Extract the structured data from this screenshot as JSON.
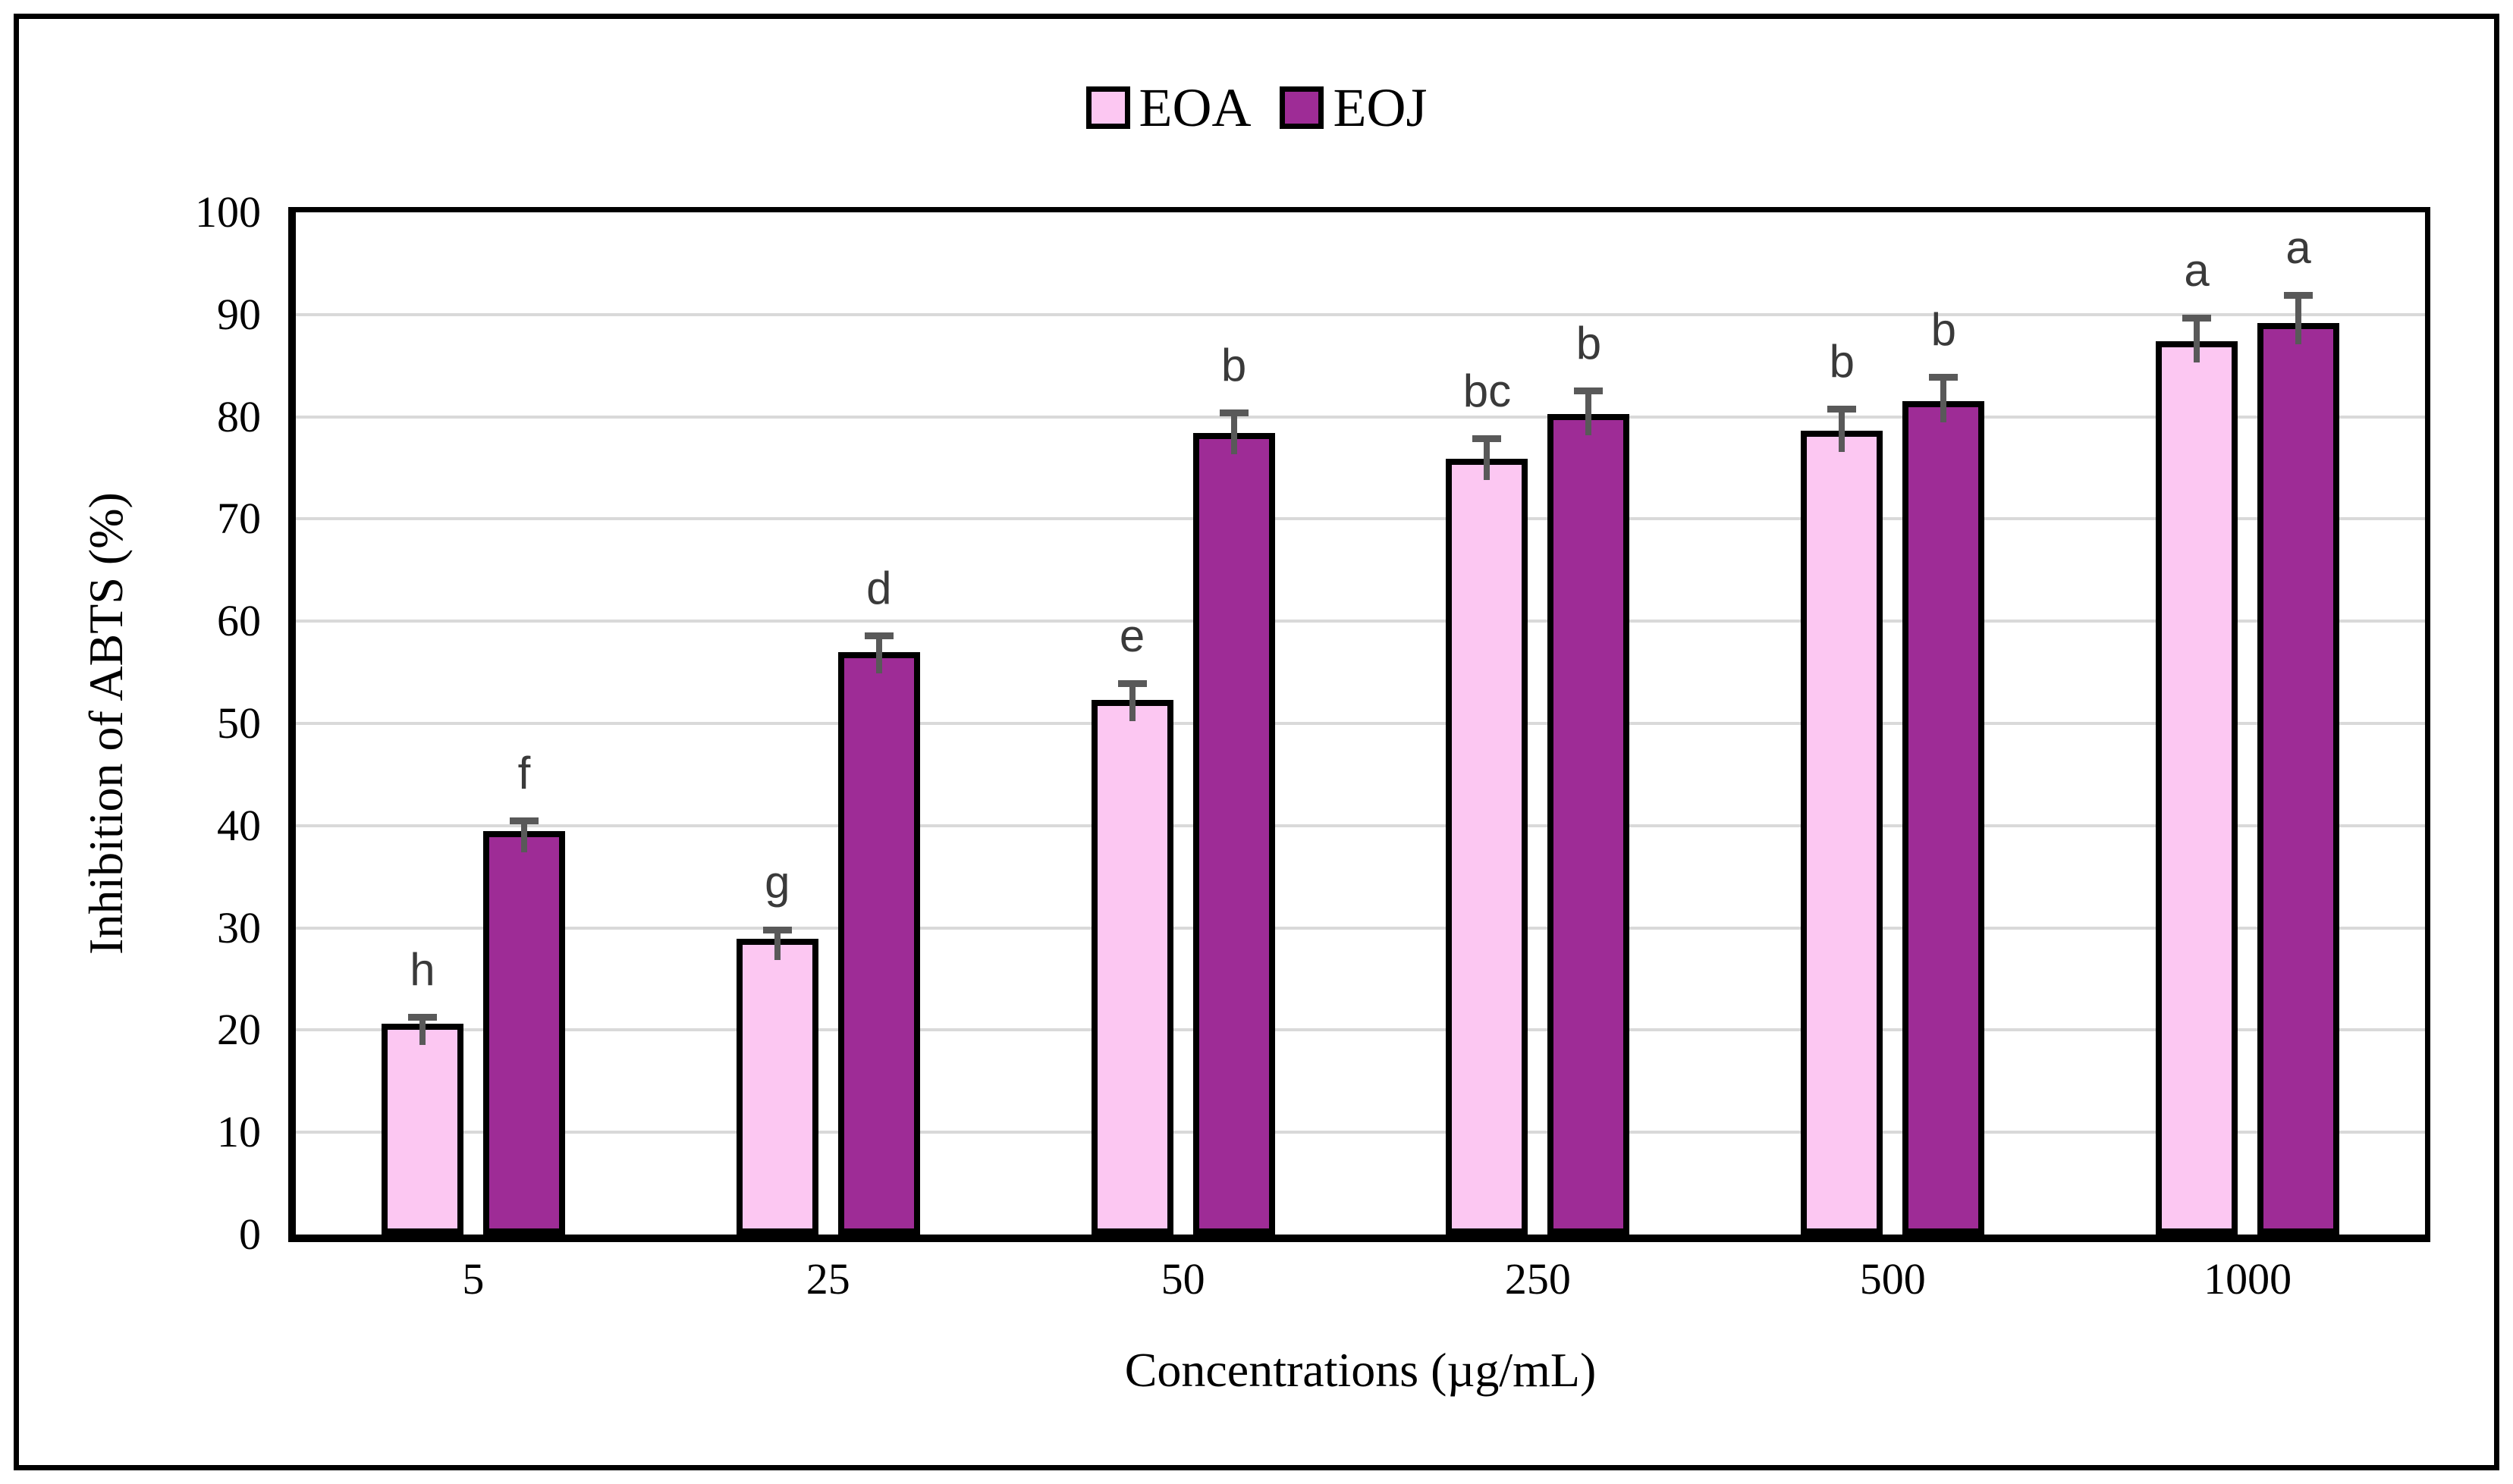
{
  "figure": {
    "background": "#ffffff",
    "frame_color": "#000000",
    "axis_color": "#000000"
  },
  "legend": {
    "position": "top-center",
    "items": [
      {
        "label": "EOA",
        "color": "#fcc7f2"
      },
      {
        "label": "EOJ",
        "color": "#9e2c96"
      }
    ]
  },
  "chart_data": {
    "type": "bar",
    "title": "",
    "xlabel": "Concentrations (µg/mL)",
    "ylabel": "Inhibition of ABTS (%)",
    "categories": [
      "5",
      "25",
      "50",
      "250",
      "500",
      "1000"
    ],
    "series": [
      {
        "name": "EOA",
        "color": "#fcc7f2",
        "values": [
          20.6,
          28.9,
          52.3,
          75.9,
          78.6,
          87.4
        ],
        "errors": [
          0.7,
          0.9,
          1.6,
          2.0,
          2.2,
          2.3
        ],
        "letters": [
          "h",
          "g",
          "e",
          "bc",
          "b",
          "a"
        ]
      },
      {
        "name": "EOJ",
        "color": "#9e2c96",
        "values": [
          39.5,
          57.0,
          78.4,
          80.3,
          81.5,
          89.2
        ],
        "errors": [
          1.0,
          1.6,
          2.0,
          2.3,
          2.4,
          2.7
        ],
        "letters": [
          "f",
          "d",
          "b",
          "b",
          "b",
          "a"
        ]
      }
    ],
    "ylim": [
      0,
      100
    ],
    "ytick_step": 10,
    "yticks": [
      0,
      10,
      20,
      30,
      40,
      50,
      60,
      70,
      80,
      90,
      100
    ],
    "grid": "horizontal",
    "gridline_color": "#d9d9d9",
    "bar_border_color": "#000000",
    "error_bar_color": "#595959",
    "letter_color": "#3a3a3a",
    "legend_position": "top-center"
  }
}
